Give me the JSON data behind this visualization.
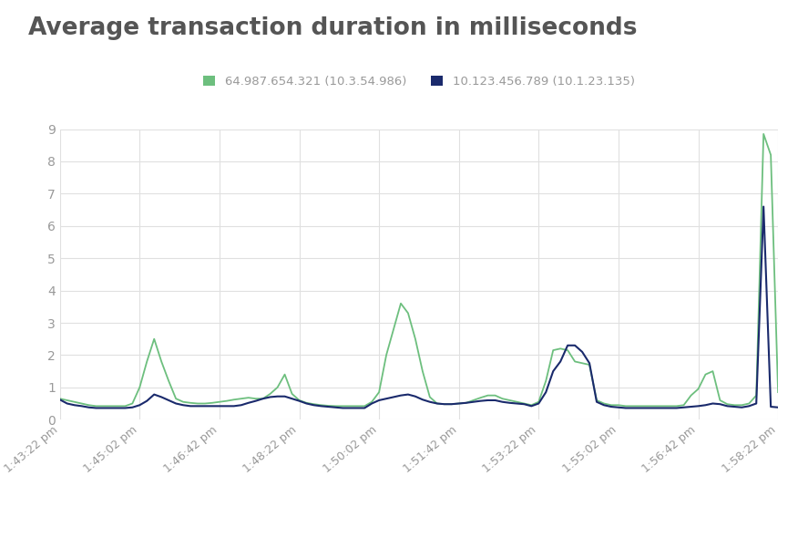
{
  "title": "Average transaction duration in milliseconds",
  "legend1": "64.987.654.321 (10.3.54.986)",
  "legend2": "10.123.456.789 (10.1.23.135)",
  "color1": "#6dbf7e",
  "color2": "#1a2a6c",
  "xtick_labels": [
    "1:43:22 pm",
    "1:45:02 pm",
    "1:46:42 pm",
    "1:48:22 pm",
    "1:50:02 pm",
    "1:51:42 pm",
    "1:53:22 pm",
    "1:55:02 pm",
    "1:56:42 pm",
    "1:58:22 pm"
  ],
  "ylim": [
    0,
    9
  ],
  "yticks": [
    0,
    1,
    2,
    3,
    4,
    5,
    6,
    7,
    8,
    9
  ],
  "background_color": "#ffffff",
  "title_color": "#555555",
  "tick_color": "#999999",
  "grid_color": "#e0e0e0",
  "series1_y": [
    0.65,
    0.6,
    0.55,
    0.5,
    0.45,
    0.42,
    0.42,
    0.42,
    0.42,
    0.42,
    0.5,
    1.0,
    1.8,
    2.5,
    1.8,
    1.2,
    0.65,
    0.55,
    0.52,
    0.5,
    0.5,
    0.52,
    0.55,
    0.58,
    0.62,
    0.65,
    0.68,
    0.65,
    0.65,
    0.8,
    1.0,
    1.4,
    0.8,
    0.6,
    0.52,
    0.48,
    0.45,
    0.43,
    0.42,
    0.42,
    0.42,
    0.42,
    0.42,
    0.55,
    0.85,
    2.0,
    2.8,
    3.6,
    3.3,
    2.5,
    1.5,
    0.7,
    0.5,
    0.48,
    0.48,
    0.5,
    0.52,
    0.6,
    0.68,
    0.75,
    0.75,
    0.65,
    0.6,
    0.55,
    0.5,
    0.45,
    0.55,
    1.2,
    2.15,
    2.2,
    2.15,
    1.8,
    1.75,
    1.7,
    0.6,
    0.5,
    0.45,
    0.45,
    0.42,
    0.42,
    0.42,
    0.42,
    0.42,
    0.42,
    0.42,
    0.42,
    0.45,
    0.75,
    0.95,
    1.4,
    1.5,
    0.6,
    0.48,
    0.45,
    0.45,
    0.5,
    0.75,
    8.85,
    8.2,
    0.85
  ],
  "series2_y": [
    0.62,
    0.5,
    0.45,
    0.42,
    0.38,
    0.36,
    0.36,
    0.36,
    0.36,
    0.36,
    0.38,
    0.45,
    0.58,
    0.78,
    0.7,
    0.6,
    0.5,
    0.45,
    0.42,
    0.42,
    0.42,
    0.42,
    0.42,
    0.42,
    0.42,
    0.45,
    0.52,
    0.58,
    0.65,
    0.7,
    0.72,
    0.72,
    0.65,
    0.58,
    0.5,
    0.45,
    0.42,
    0.4,
    0.38,
    0.36,
    0.36,
    0.36,
    0.36,
    0.5,
    0.6,
    0.65,
    0.7,
    0.75,
    0.78,
    0.72,
    0.62,
    0.55,
    0.5,
    0.48,
    0.48,
    0.5,
    0.52,
    0.55,
    0.58,
    0.6,
    0.6,
    0.55,
    0.52,
    0.5,
    0.48,
    0.42,
    0.5,
    0.85,
    1.5,
    1.8,
    2.3,
    2.3,
    2.1,
    1.75,
    0.55,
    0.45,
    0.4,
    0.38,
    0.36,
    0.36,
    0.36,
    0.36,
    0.36,
    0.36,
    0.36,
    0.36,
    0.38,
    0.4,
    0.42,
    0.45,
    0.5,
    0.48,
    0.42,
    0.4,
    0.38,
    0.42,
    0.5,
    6.6,
    0.4,
    0.38
  ]
}
